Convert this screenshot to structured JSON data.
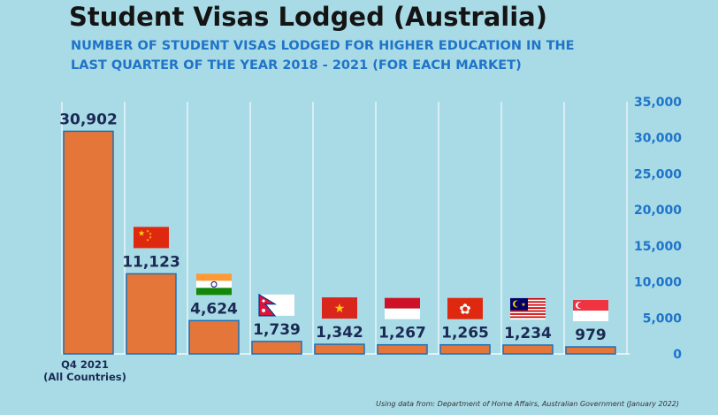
{
  "title": "Student Visas Lodged (Australia)",
  "subtitle_lines": [
    "NUMBER OF STUDENT VISAS LODGED FOR HIGHER EDUCATION IN THE",
    "LAST QUARTER OF THE YEAR 2018 - 2021 (FOR EACH MARKET)"
  ],
  "source": "Using data from: Department of Home Affairs, Australian Government (January 2022)",
  "colors": {
    "bar": "#e5763a",
    "bar_edge": "#1d6fb8",
    "axis_text": "#1f74c9",
    "value_text": "#1a2a55",
    "background": "#a9dbe6"
  },
  "chart_data": {
    "type": "bar",
    "categories": [
      "Q4 2021\n(All Countries)",
      "",
      "",
      "",
      "",
      "",
      "",
      "",
      ""
    ],
    "values": [
      30902,
      11123,
      4624,
      1739,
      1342,
      1267,
      1265,
      1234,
      979
    ],
    "value_labels": [
      "30,902",
      "11,123",
      "4,624",
      "1,739",
      "1,342",
      "1,267",
      "1,265",
      "1,234",
      "979"
    ],
    "icons": [
      "",
      "china-flag-icon",
      "india-flag-icon",
      "nepal-flag-icon",
      "vietnam-flag-icon",
      "indonesia-flag-icon",
      "hong-kong-flag-icon",
      "malaysia-flag-icon",
      "singapore-flag-icon"
    ],
    "ylim": [
      0,
      35000
    ],
    "yticks": [
      0,
      5000,
      10000,
      15000,
      20000,
      25000,
      30000,
      35000
    ],
    "ytick_labels": [
      "0",
      "5,000",
      "10,000",
      "15,000",
      "20,000",
      "25,000",
      "30,000",
      "35,000"
    ],
    "grid": "vertical",
    "y_axis_side": "right"
  }
}
